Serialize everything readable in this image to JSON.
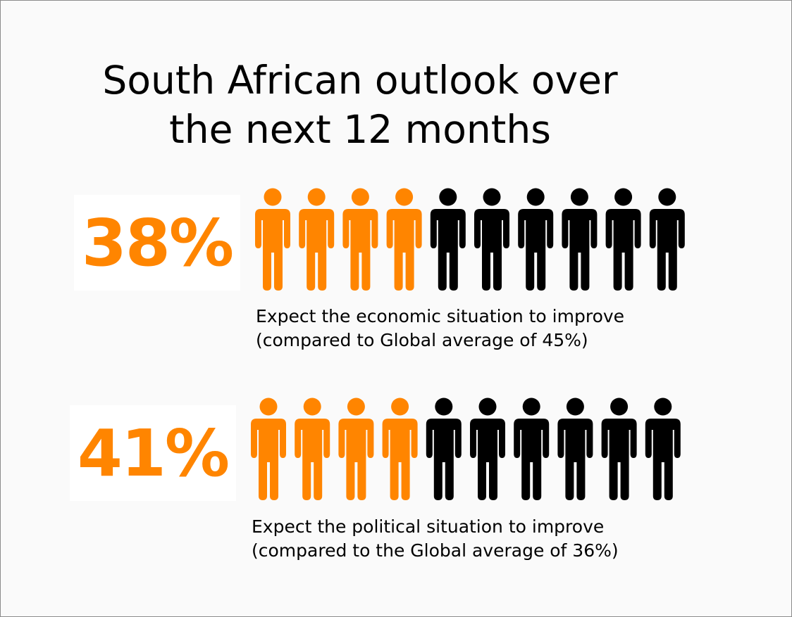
{
  "title": {
    "line1": "South African outlook over",
    "line2": "the next 12 months"
  },
  "colors": {
    "highlight": "#ff8500",
    "rest": "#000000",
    "background": "#fafafa",
    "border": "#8c8c8c"
  },
  "icon": "person-icon",
  "chart_data": {
    "type": "pictograph",
    "total_icons": 10,
    "items": [
      {
        "value": "38%",
        "value_number": 38,
        "highlighted_icons": 4,
        "caption_line1": "Expect the economic situation to improve",
        "caption_line2": "(compared to Global average of 45%)",
        "global_average": 45
      },
      {
        "value": "41%",
        "value_number": 41,
        "highlighted_icons": 4,
        "caption_line1": "Expect the political situation to improve",
        "caption_line2": "(compared to the Global average of 36%)",
        "global_average": 36
      }
    ]
  }
}
